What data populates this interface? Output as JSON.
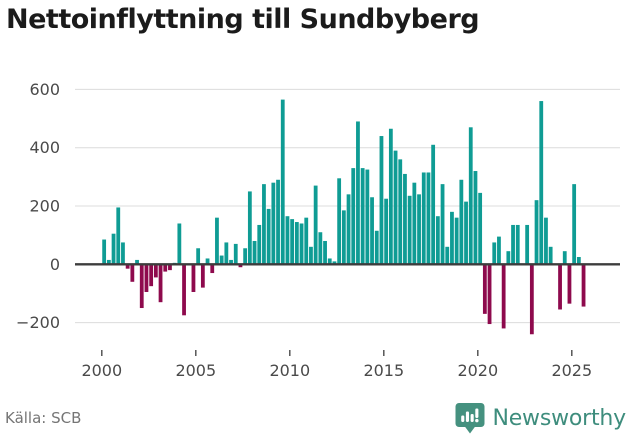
{
  "title": "Nettoinflyttning till Sundbyberg",
  "source": "Källa: SCB",
  "brand": {
    "name": "Newsworthy",
    "badge_icon": "bar-chart-pin-icon",
    "badge_color": "#45917f",
    "text_color": "#3e8d7d"
  },
  "colors": {
    "positive_bar": "#0f9c94",
    "negative_bar": "#8e0a4d",
    "gridline": "#dcdcdc",
    "zero_line": "#3d3d3d",
    "axis_text": "#4a4a4a",
    "title_text": "#1b1b1b",
    "source_text": "#757575"
  },
  "chart_data": {
    "type": "bar",
    "title": "Nettoinflyttning till Sundbyberg",
    "xlabel": "",
    "ylabel": "",
    "x_unit": "quarter",
    "start_period": "2000 Q1",
    "end_period": "2025 Q3",
    "x_tick_labels": [
      "2000",
      "2005",
      "2010",
      "2015",
      "2020",
      "2025"
    ],
    "y_ticks": [
      600,
      400,
      200,
      0,
      -200
    ],
    "y_tick_labels": [
      "600",
      "400",
      "200",
      "0",
      "−200"
    ],
    "ylim": [
      -270,
      640
    ],
    "grid": true,
    "legend": "none",
    "series": [
      {
        "name": "Nettoinflyttning",
        "values": [
          85,
          15,
          105,
          195,
          75,
          -15,
          -60,
          15,
          -150,
          -95,
          -75,
          -45,
          -130,
          -25,
          -20,
          5,
          140,
          -175,
          0,
          -95,
          55,
          -80,
          20,
          -30,
          160,
          30,
          75,
          15,
          70,
          -10,
          55,
          250,
          80,
          135,
          275,
          190,
          280,
          290,
          565,
          165,
          155,
          145,
          140,
          160,
          60,
          270,
          110,
          80,
          20,
          10,
          295,
          185,
          240,
          330,
          490,
          330,
          325,
          230,
          115,
          440,
          225,
          465,
          390,
          360,
          310,
          235,
          280,
          240,
          315,
          315,
          410,
          165,
          275,
          60,
          180,
          160,
          290,
          215,
          470,
          320,
          245,
          -170,
          -205,
          75,
          95,
          -220,
          45,
          135,
          135,
          0,
          135,
          -240,
          220,
          560,
          160,
          60,
          0,
          -155,
          45,
          -135,
          275,
          25,
          -145
        ]
      }
    ]
  }
}
